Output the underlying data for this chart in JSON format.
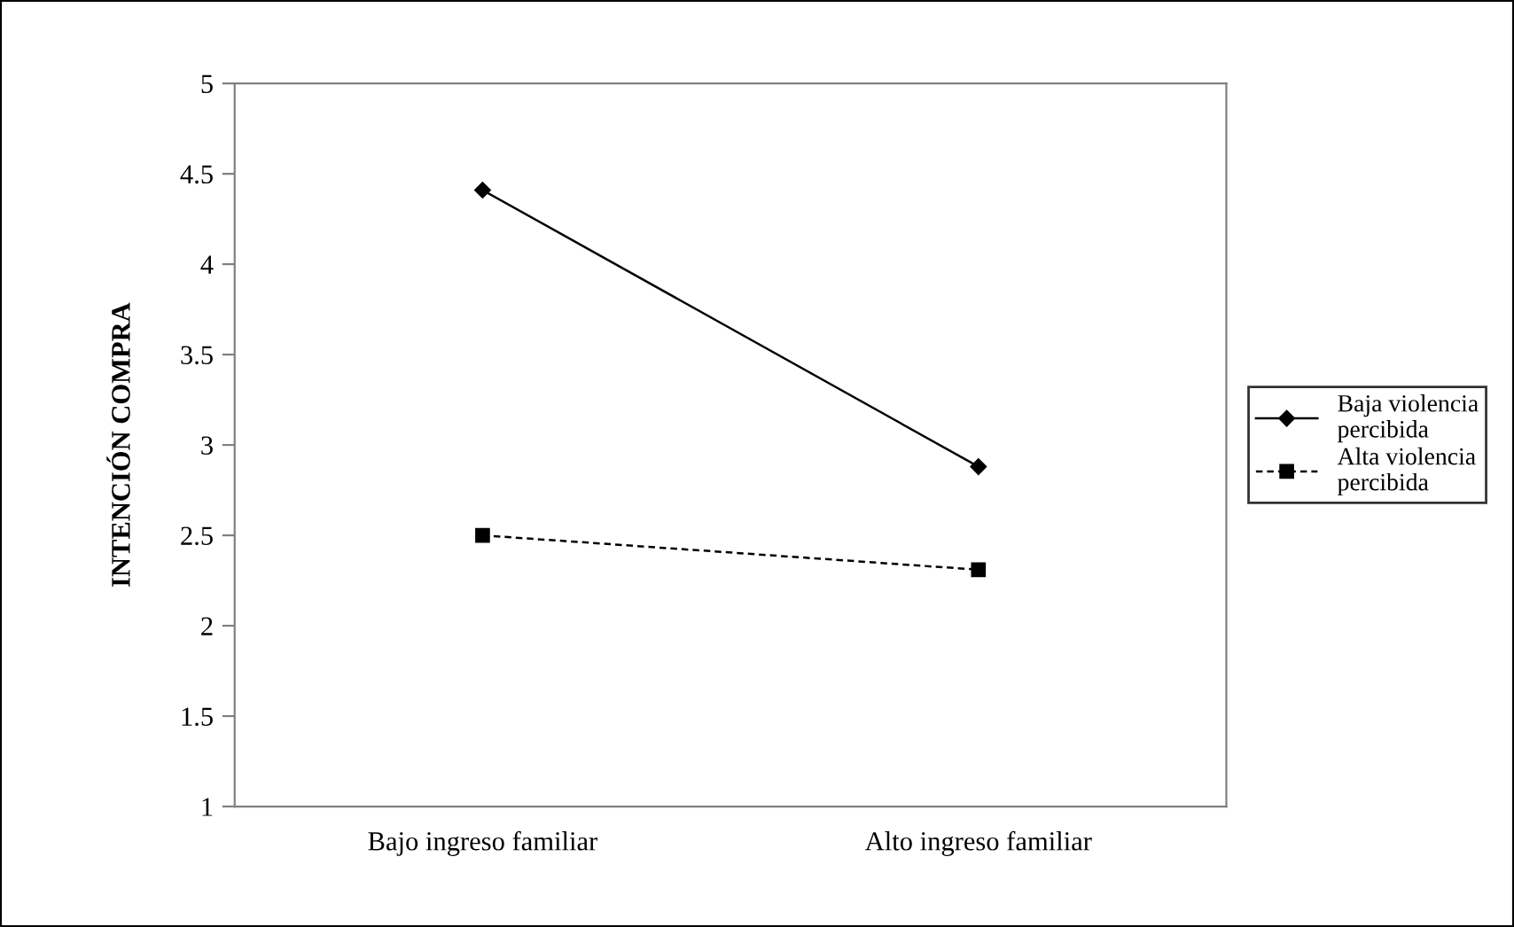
{
  "chart_data": {
    "type": "line",
    "ylabel": "INTENCIÓN COMPRA",
    "categories": [
      "Bajo ingreso familiar",
      "Alto ingreso familiar"
    ],
    "series": [
      {
        "name": "Baja violencia percibida",
        "color": "#000000",
        "values": [
          4.41,
          2.88
        ],
        "marker": "diamond",
        "line_style": "solid"
      },
      {
        "name": "Alta violencia percibida",
        "color": "#000000",
        "values": [
          2.5,
          2.31
        ],
        "marker": "square",
        "line_style": "dashed"
      }
    ],
    "ylim": [
      1,
      5
    ],
    "yticks": [
      1,
      1.5,
      2,
      2.5,
      3,
      3.5,
      4,
      4.5,
      5
    ],
    "grid": false,
    "legend": "right"
  }
}
